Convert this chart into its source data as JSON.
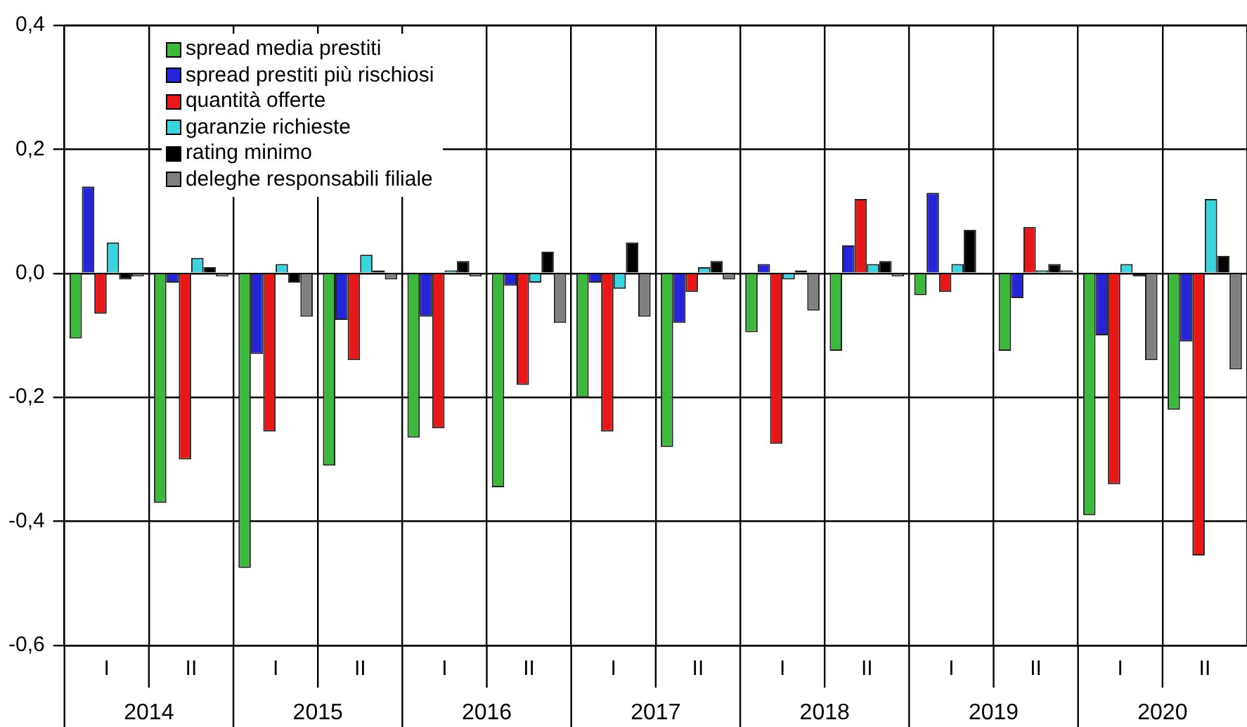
{
  "chart_data": {
    "type": "bar",
    "categories": [
      "I",
      "II",
      "I",
      "II",
      "I",
      "II",
      "I",
      "II",
      "I",
      "II",
      "I",
      "II",
      "I",
      "II"
    ],
    "series": [
      {
        "name": "spread media prestiti",
        "color": "#3cb83c",
        "values": [
          -0.105,
          -0.37,
          -0.475,
          -0.31,
          -0.265,
          -0.345,
          -0.2,
          -0.28,
          -0.095,
          -0.125,
          -0.035,
          -0.125,
          -0.39,
          -0.22
        ]
      },
      {
        "name": "spread prestiti più rischiosi",
        "color": "#2424d8",
        "values": [
          0.14,
          -0.015,
          -0.13,
          -0.075,
          -0.07,
          -0.02,
          -0.015,
          -0.08,
          0.015,
          0.045,
          0.13,
          -0.04,
          -0.1,
          -0.11
        ]
      },
      {
        "name": "quantità offerte",
        "color": "#e81818",
        "values": [
          -0.065,
          -0.3,
          -0.255,
          -0.14,
          -0.25,
          -0.18,
          -0.255,
          -0.03,
          -0.275,
          0.12,
          -0.03,
          0.075,
          -0.34,
          -0.455
        ]
      },
      {
        "name": "garanzie richieste",
        "color": "#38d4e0",
        "values": [
          0.05,
          0.025,
          0.015,
          0.03,
          0.005,
          -0.015,
          -0.025,
          0.01,
          -0.01,
          0.015,
          0.015,
          0.005,
          0.015,
          0.12
        ]
      },
      {
        "name": "rating minimo",
        "color": "#000000",
        "values": [
          -0.01,
          0.01,
          -0.015,
          0.005,
          0.02,
          0.035,
          0.05,
          0.02,
          0.005,
          0.02,
          0.07,
          0.015,
          -0.005,
          0.028
        ]
      },
      {
        "name": "deleghe responsabili filiale",
        "color": "#808080",
        "values": [
          -0.005,
          -0.005,
          -0.07,
          -0.01,
          -0.005,
          -0.08,
          -0.07,
          -0.01,
          -0.06,
          -0.005,
          0.0,
          0.005,
          -0.14,
          -0.155
        ]
      }
    ],
    "ylim": [
      -0.6,
      0.4
    ],
    "yticks": [
      {
        "value": 0.4,
        "label": "0,4"
      },
      {
        "value": 0.2,
        "label": "0,2"
      },
      {
        "value": 0,
        "label": "0,0"
      },
      {
        "value": -0.2,
        "label": "-0,2"
      },
      {
        "value": -0.4,
        "label": "-0,4"
      },
      {
        "value": -0.6,
        "label": "-0,6"
      }
    ],
    "annotations": [
      "2014",
      "2015",
      "2016",
      "2017",
      "2018",
      "2019",
      "2020"
    ],
    "grid": true,
    "legend": "top left"
  }
}
